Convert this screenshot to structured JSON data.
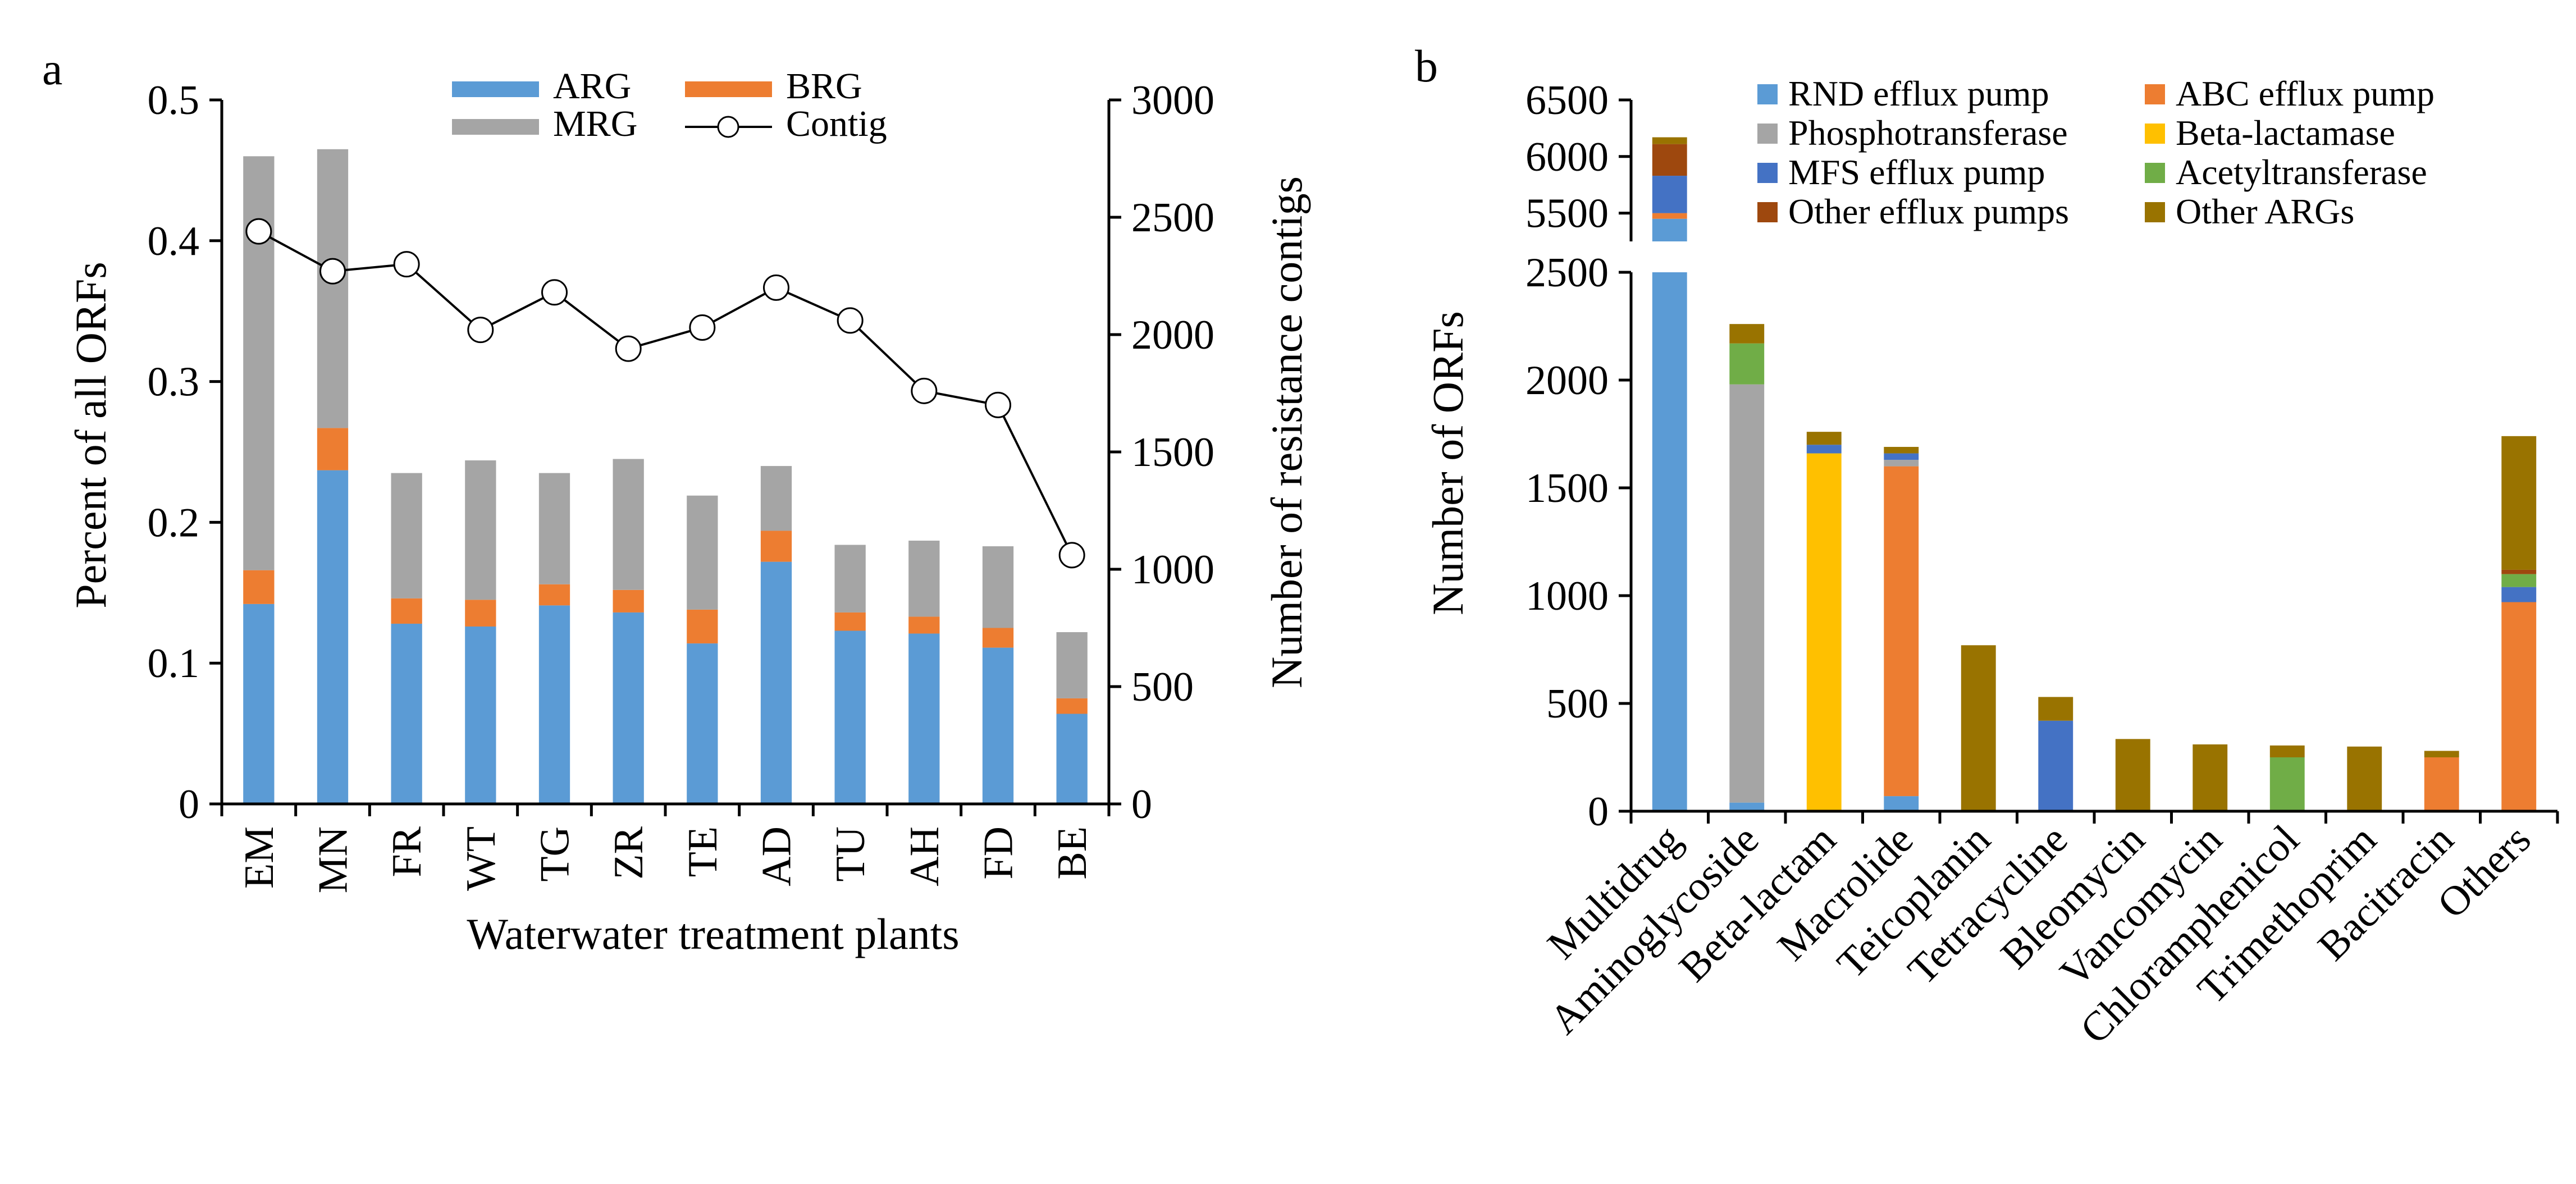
{
  "chart_data": [
    {
      "panel_label": "a",
      "type": "bar",
      "stacked": true,
      "xlabel": "Waterwater treatment plants",
      "ylabel": "Percent of all ORFs",
      "y2label": "Number of resistance contigs",
      "ylim": [
        0,
        0.5
      ],
      "y2lim": [
        0,
        3000
      ],
      "yticks": [
        "0",
        "0.1",
        "0.2",
        "0.3",
        "0.4",
        "0.5"
      ],
      "y2ticks": [
        "0",
        "500",
        "1000",
        "1500",
        "2000",
        "2500",
        "3000"
      ],
      "categories": [
        "EM",
        "MN",
        "FR",
        "WT",
        "TG",
        "ZR",
        "TE",
        "AD",
        "TU",
        "AH",
        "FD",
        "BE"
      ],
      "series": [
        {
          "name": "ARG",
          "color": "#5B9BD5",
          "values": [
            0.142,
            0.237,
            0.128,
            0.126,
            0.141,
            0.136,
            0.114,
            0.172,
            0.123,
            0.121,
            0.111,
            0.064
          ]
        },
        {
          "name": "BRG",
          "color": "#ED7D31",
          "values": [
            0.024,
            0.03,
            0.018,
            0.019,
            0.015,
            0.016,
            0.024,
            0.022,
            0.013,
            0.012,
            0.014,
            0.011
          ]
        },
        {
          "name": "MRG",
          "color": "#A5A5A5",
          "values": [
            0.294,
            0.198,
            0.089,
            0.099,
            0.079,
            0.093,
            0.081,
            0.046,
            0.048,
            0.054,
            0.058,
            0.047
          ]
        }
      ],
      "line_series": {
        "name": "Contig",
        "axis": "right",
        "values": [
          2440,
          2270,
          2300,
          2020,
          2180,
          1940,
          2030,
          2200,
          2060,
          1760,
          1700,
          1060
        ]
      },
      "legend": "top"
    },
    {
      "panel_label": "b",
      "type": "bar",
      "stacked": true,
      "broken_axis": true,
      "ylabel": "Number of ORFs",
      "ylim_lower": [
        0,
        2500
      ],
      "ylim_upper": [
        5250,
        6500
      ],
      "yticks_lower": [
        "0",
        "500",
        "1000",
        "1500",
        "2000",
        "2500"
      ],
      "yticks_upper": [
        "5500",
        "6000",
        "6500"
      ],
      "categories": [
        "Multidrug",
        "Aminoglycoside",
        "Beta-lactam",
        "Macrolide",
        "Teicoplanin",
        "Tetracycline",
        "Bleomycin",
        "Vancomycin",
        "Chloramphenicol",
        "Trimethoprim",
        "Bacitracin",
        "Others"
      ],
      "series": [
        {
          "name": "RND efflux pump",
          "color": "#5B9BD5",
          "values": [
            5450,
            40,
            0,
            70,
            0,
            0,
            0,
            0,
            0,
            0,
            0,
            0
          ]
        },
        {
          "name": "ABC efflux pump",
          "color": "#ED7D31",
          "values": [
            50,
            0,
            0,
            1530,
            0,
            0,
            0,
            0,
            0,
            0,
            250,
            970
          ]
        },
        {
          "name": "Phosphotransferase",
          "color": "#A5A5A5",
          "values": [
            0,
            1940,
            0,
            30,
            0,
            0,
            0,
            0,
            0,
            0,
            0,
            0
          ]
        },
        {
          "name": "Beta-lactamase",
          "color": "#FFC000",
          "values": [
            0,
            0,
            1660,
            0,
            0,
            0,
            0,
            0,
            0,
            0,
            0,
            0
          ]
        },
        {
          "name": "MFS efflux pump",
          "color": "#4472C4",
          "values": [
            330,
            0,
            40,
            30,
            0,
            420,
            0,
            0,
            0,
            0,
            0,
            70
          ]
        },
        {
          "name": "Acetyltransferase",
          "color": "#70AD47",
          "values": [
            0,
            190,
            0,
            0,
            0,
            0,
            0,
            0,
            250,
            0,
            0,
            60
          ]
        },
        {
          "name": "Other efflux pumps",
          "color": "#9E480E",
          "values": [
            280,
            0,
            0,
            0,
            0,
            0,
            0,
            0,
            0,
            0,
            0,
            20
          ]
        },
        {
          "name": "Other ARGs",
          "color": "#997300",
          "values": [
            60,
            90,
            60,
            30,
            770,
            110,
            335,
            310,
            55,
            300,
            30,
            620
          ]
        }
      ],
      "legend": "top"
    }
  ]
}
